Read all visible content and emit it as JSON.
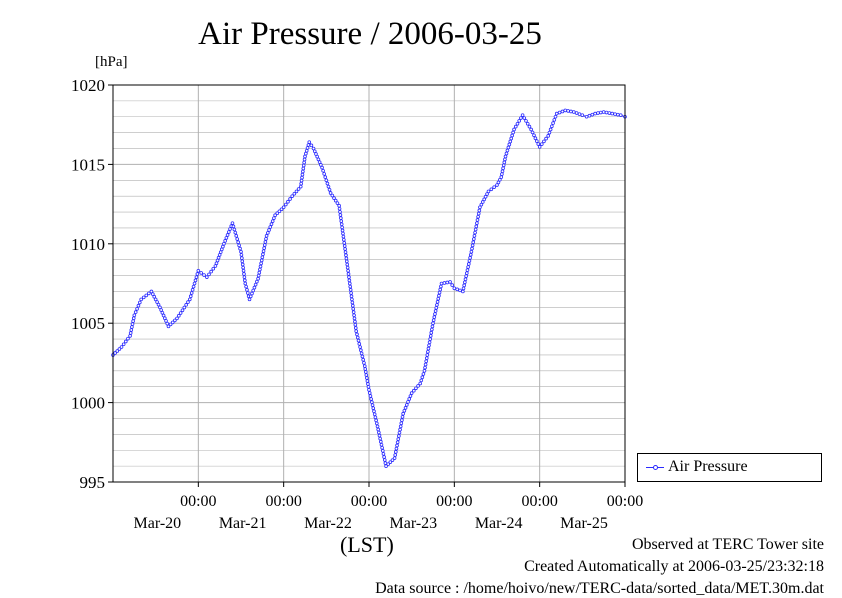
{
  "title": "Air Pressure / 2006-03-25",
  "unit_label": "[hPa]",
  "x_axis_caption": "(LST)",
  "legend": {
    "label": "Air Pressure"
  },
  "footer": {
    "observed": "Observed at TERC Tower site",
    "created": "Created Automatically at 2006-03-25/23:32:18",
    "source": "Data source : /home/hoivo/new/TERC-data/sorted_data/MET.30m.dat"
  },
  "colors": {
    "series": "#2b2bff",
    "grid": "#b0b0b0",
    "frame": "#000000"
  },
  "chart_data": {
    "type": "line",
    "title": "Air Pressure / 2006-03-25",
    "ylabel": "[hPa]",
    "xlabel": "(LST)",
    "ylim": [
      995,
      1020
    ],
    "yticks": [
      "995",
      "1000",
      "1005",
      "1010",
      "1015",
      "1020"
    ],
    "xlim": [
      -1.0,
      5.0
    ],
    "xtick_time_label": "00:00",
    "xtick_dates": [
      "Mar-20",
      "Mar-21",
      "Mar-22",
      "Mar-23",
      "Mar-24",
      "Mar-25"
    ],
    "grid": true,
    "legend_position": "right",
    "series": [
      {
        "name": "Air Pressure",
        "x": [
          -1.0,
          -0.9,
          -0.8,
          -0.75,
          -0.67,
          -0.55,
          -0.45,
          -0.35,
          -0.25,
          -0.1,
          0.0,
          0.1,
          0.2,
          0.25,
          0.3,
          0.4,
          0.5,
          0.55,
          0.6,
          0.7,
          0.8,
          0.9,
          1.0,
          1.1,
          1.2,
          1.25,
          1.3,
          1.35,
          1.45,
          1.55,
          1.65,
          1.75,
          1.85,
          1.95,
          2.0,
          2.1,
          2.2,
          2.3,
          2.4,
          2.5,
          2.6,
          2.65,
          2.75,
          2.85,
          2.95,
          3.0,
          3.1,
          3.2,
          3.3,
          3.4,
          3.5,
          3.55,
          3.6,
          3.7,
          3.8,
          3.9,
          4.0,
          4.1,
          4.2,
          4.3,
          4.4,
          4.5,
          4.55,
          4.65,
          4.75,
          4.85,
          4.95,
          5.0
        ],
        "values": [
          1003.0,
          1003.5,
          1004.2,
          1005.5,
          1006.5,
          1007.0,
          1006.0,
          1004.8,
          1005.3,
          1006.5,
          1008.3,
          1007.9,
          1008.6,
          1009.3,
          1010.0,
          1011.3,
          1009.5,
          1007.5,
          1006.5,
          1007.8,
          1010.5,
          1011.8,
          1012.3,
          1013.0,
          1013.6,
          1015.5,
          1016.4,
          1016.0,
          1014.8,
          1013.2,
          1012.4,
          1008.5,
          1004.5,
          1002.3,
          1000.8,
          998.5,
          996.0,
          996.5,
          999.3,
          1000.6,
          1001.2,
          1002.0,
          1005.0,
          1007.5,
          1007.6,
          1007.2,
          1007.0,
          1009.5,
          1012.3,
          1013.3,
          1013.7,
          1014.2,
          1015.5,
          1017.2,
          1018.1,
          1017.2,
          1016.1,
          1016.8,
          1018.2,
          1018.4,
          1018.3,
          1018.1,
          1018.0,
          1018.2,
          1018.3,
          1018.2,
          1018.1,
          1018.0
        ]
      }
    ]
  }
}
